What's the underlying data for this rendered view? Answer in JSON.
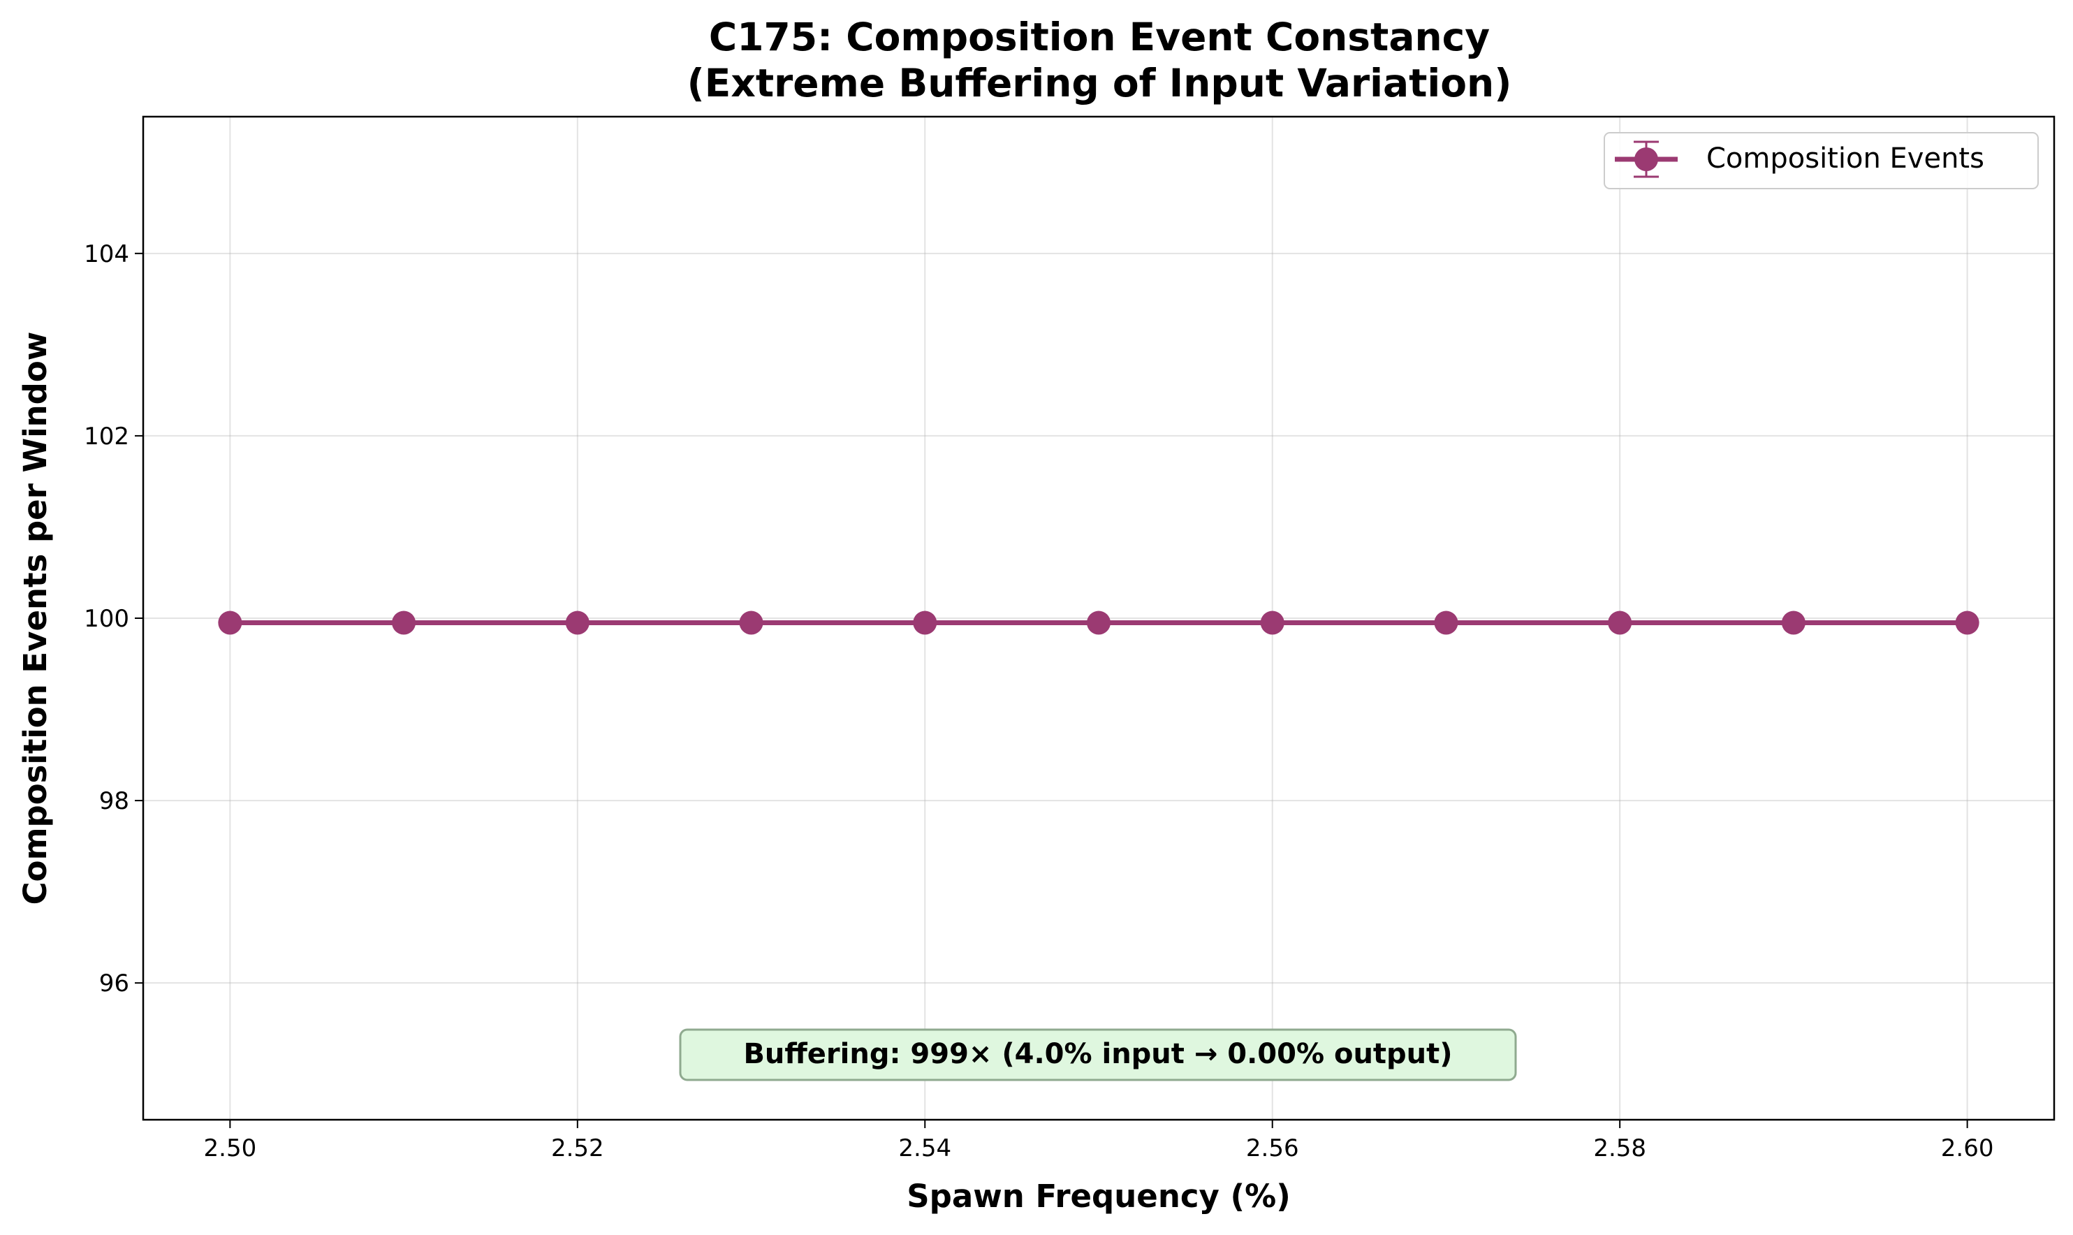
{
  "chart_data": {
    "type": "line",
    "title": [
      "C175: Composition Event Constancy",
      "(Extreme Buffering of Input Variation)"
    ],
    "xlabel": "Spawn Frequency (%)",
    "ylabel": "Composition Events per Window",
    "xlim": [
      2.495,
      2.605
    ],
    "ylim": [
      94.5,
      105.5
    ],
    "xticks": [
      2.5,
      2.52,
      2.54,
      2.56,
      2.58,
      2.6
    ],
    "xtick_labels": [
      "2.50",
      "2.52",
      "2.54",
      "2.56",
      "2.58",
      "2.60"
    ],
    "yticks": [
      96,
      98,
      100,
      102,
      104
    ],
    "ytick_labels": [
      "96",
      "98",
      "100",
      "102",
      "104"
    ],
    "grid": true,
    "legend_position": "top-right",
    "series": [
      {
        "name": "Composition Events",
        "color": "#9b3a72",
        "marker": "circle",
        "error_bars": true,
        "x": [
          2.5,
          2.51,
          2.52,
          2.53,
          2.54,
          2.55,
          2.56,
          2.57,
          2.58,
          2.59,
          2.6
        ],
        "y": [
          99.95,
          99.95,
          99.95,
          99.95,
          99.95,
          99.95,
          99.95,
          99.95,
          99.95,
          99.95,
          99.95
        ]
      }
    ],
    "annotation": {
      "text": "Buffering: 999× (4.0% input → 0.00% output)",
      "box_color": "#dff7df",
      "border_color": "#8faa8f"
    }
  }
}
